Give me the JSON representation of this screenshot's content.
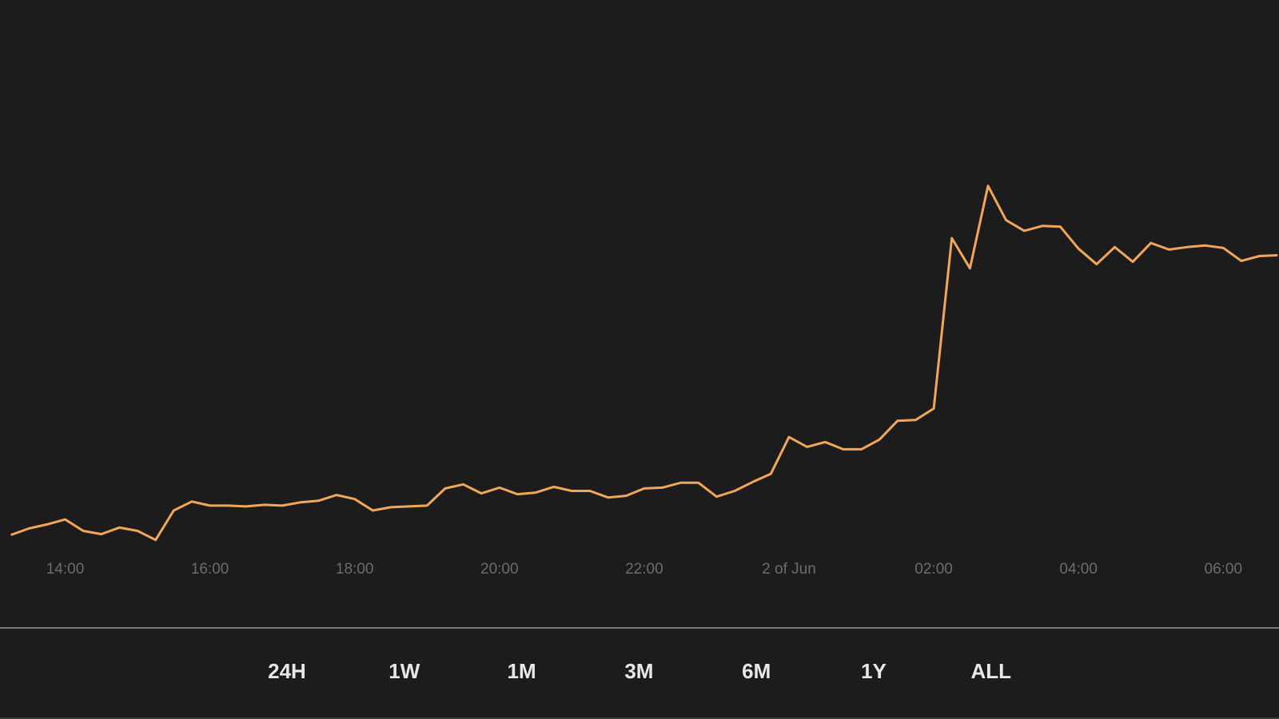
{
  "chart_data": {
    "type": "line",
    "x": [
      13.25,
      13.5,
      13.75,
      14,
      14.25,
      14.5,
      14.75,
      15,
      15.25,
      15.5,
      15.75,
      16,
      16.25,
      16.5,
      16.75,
      17,
      17.25,
      17.5,
      17.75,
      18,
      18.25,
      18.5,
      18.75,
      19,
      19.25,
      19.5,
      19.75,
      20,
      20.25,
      20.5,
      20.75,
      21,
      21.25,
      21.5,
      21.75,
      22,
      22.25,
      22.5,
      22.75,
      23,
      23.25,
      23.5,
      23.75,
      24,
      24.25,
      24.5,
      24.75,
      25,
      25.25,
      25.5,
      25.75,
      26,
      26.25,
      26.5,
      26.75,
      27,
      27.25,
      27.5,
      27.75,
      28,
      28.25,
      28.5,
      28.75,
      29,
      29.25,
      29.5,
      29.75,
      30,
      30.25,
      30.5,
      30.75
    ],
    "series": [
      {
        "color": "#f2a65a",
        "values": [
          114,
          122,
          127,
          133,
          119,
          115,
          123,
          119,
          108,
          144,
          155,
          150,
          150,
          149,
          151,
          150,
          154,
          156,
          163,
          158,
          144,
          148,
          149,
          150,
          171,
          176,
          165,
          172,
          164,
          166,
          173,
          168,
          168,
          160,
          162,
          171,
          172,
          178,
          178,
          161,
          168,
          179,
          189,
          234,
          222,
          228,
          219,
          219,
          231,
          254,
          255,
          269,
          478,
          441,
          542,
          500,
          487,
          493,
          492,
          465,
          446,
          467,
          449,
          472,
          464,
          467,
          469,
          466,
          450,
          456,
          457
        ]
      }
    ],
    "xlim": [
      13.1,
      30.77
    ],
    "ylim": [
      0,
      770
    ],
    "xticks": [
      {
        "value": 14,
        "label": "14:00"
      },
      {
        "value": 16,
        "label": "16:00"
      },
      {
        "value": 18,
        "label": "18:00"
      },
      {
        "value": 20,
        "label": "20:00"
      },
      {
        "value": 22,
        "label": "22:00"
      },
      {
        "value": 24,
        "label": "2 of Jun"
      },
      {
        "value": 26,
        "label": "02:00"
      },
      {
        "value": 28,
        "label": "04:00"
      },
      {
        "value": 30,
        "label": "06:00"
      }
    ]
  },
  "range_buttons": {
    "options": [
      "24H",
      "1W",
      "1M",
      "3M",
      "6M",
      "1Y",
      "ALL"
    ],
    "selected_index": 0,
    "active_color": "#f2a65a"
  }
}
